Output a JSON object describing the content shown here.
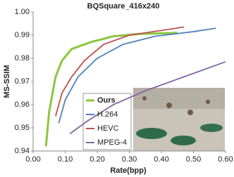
{
  "chart_data": {
    "type": "line",
    "title": "BQSquare_416x240",
    "x_label": "Rate(bpp)",
    "y_label": "MS-SSIM",
    "xlim": [
      0,
      0.6
    ],
    "ylim": [
      0.94,
      1.0
    ],
    "xticks": [
      {
        "value": 0,
        "label": "0.00"
      },
      {
        "value": 0.1,
        "label": "0.10"
      },
      {
        "value": 0.2,
        "label": "0.20"
      },
      {
        "value": 0.3,
        "label": "0.30"
      },
      {
        "value": 0.4,
        "label": "0.40"
      },
      {
        "value": 0.5,
        "label": "0.50"
      },
      {
        "value": 0.6,
        "label": "0.60"
      }
    ],
    "yticks": [
      {
        "value": 0.94,
        "label": "0.94"
      },
      {
        "value": 0.95,
        "label": "0.95"
      },
      {
        "value": 0.96,
        "label": "0.96"
      },
      {
        "value": 0.97,
        "label": "0.97"
      },
      {
        "value": 0.98,
        "label": "0.98"
      },
      {
        "value": 0.99,
        "label": "0.99"
      },
      {
        "value": 1.0,
        "label": "1.00"
      }
    ],
    "series": [
      {
        "name": "Ours",
        "color": "#8cc63f",
        "x": [
          0.04,
          0.05,
          0.07,
          0.09,
          0.12,
          0.18,
          0.25,
          0.33,
          0.45
        ],
        "values": [
          0.942,
          0.957,
          0.972,
          0.979,
          0.984,
          0.987,
          0.9895,
          0.9905,
          0.991
        ]
      },
      {
        "name": "H.264",
        "color": "#4f81bd",
        "x": [
          0.08,
          0.1,
          0.14,
          0.2,
          0.28,
          0.38,
          0.5,
          0.57
        ],
        "values": [
          0.952,
          0.962,
          0.972,
          0.98,
          0.986,
          0.9895,
          0.9915,
          0.993
        ]
      },
      {
        "name": "HEVC",
        "color": "#c0504d",
        "x": [
          0.07,
          0.09,
          0.12,
          0.16,
          0.22,
          0.3,
          0.4,
          0.47
        ],
        "values": [
          0.955,
          0.965,
          0.972,
          0.979,
          0.986,
          0.99,
          0.992,
          0.9935
        ]
      },
      {
        "name": "MPEG-4",
        "color": "#8064a2",
        "x": [
          0.115,
          0.17,
          0.25,
          0.35,
          0.45,
          0.55,
          0.6
        ],
        "values": [
          0.9475,
          0.953,
          0.96,
          0.966,
          0.971,
          0.976,
          0.9785
        ]
      }
    ]
  }
}
